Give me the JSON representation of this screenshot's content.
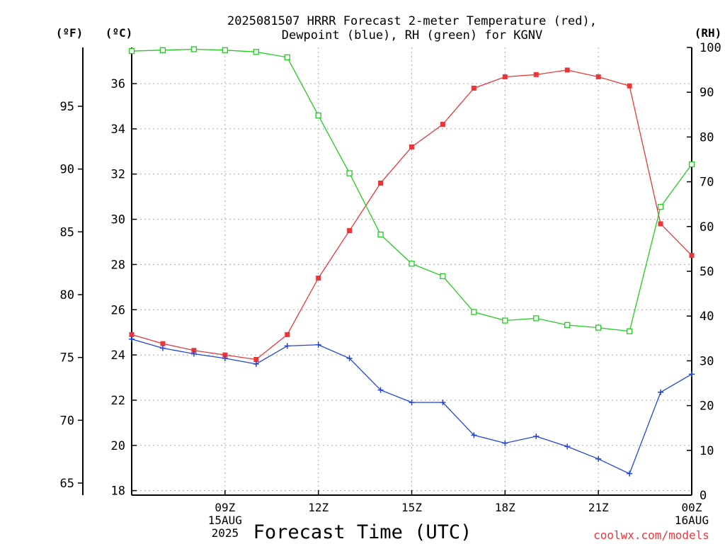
{
  "chart_data": {
    "type": "line",
    "title_line1": "2025081507 HRRR Forecast 2-meter Temperature (red),",
    "title_line2": "Dewpoint (blue), RH (green) for KGNV",
    "unit_f": "(ºF)",
    "unit_c": "(ºC)",
    "unit_rh": "(RH)",
    "xlabel": "Forecast Time (UTC)",
    "credit": "coolwx.com/models",
    "grid": true,
    "x_hours_from_06Z": [
      0,
      1,
      2,
      3,
      4,
      5,
      6,
      7,
      8,
      9,
      10,
      11,
      12,
      13,
      14,
      15,
      16,
      17,
      18
    ],
    "xlim": [
      0,
      18
    ],
    "x_ticks": [
      {
        "hour": 3,
        "lines": [
          "09Z",
          "15AUG",
          "2025"
        ]
      },
      {
        "hour": 6,
        "lines": [
          "12Z"
        ]
      },
      {
        "hour": 9,
        "lines": [
          "15Z"
        ]
      },
      {
        "hour": 12,
        "lines": [
          "18Z"
        ]
      },
      {
        "hour": 15,
        "lines": [
          "21Z"
        ]
      },
      {
        "hour": 18,
        "lines": [
          "00Z",
          "16AUG"
        ]
      }
    ],
    "celsius_axis": {
      "lim": [
        17.8,
        37.6
      ],
      "ticks": [
        "18",
        "20",
        "22",
        "24",
        "26",
        "28",
        "30",
        "32",
        "34",
        "36"
      ]
    },
    "fahrenheit_axis": {
      "lim": [
        64.04,
        99.68
      ],
      "ticks": [
        "65",
        "70",
        "75",
        "80",
        "85",
        "90",
        "95"
      ]
    },
    "rh_axis": {
      "lim": [
        0,
        100
      ],
      "ticks": [
        "0",
        "10",
        "20",
        "30",
        "40",
        "50",
        "60",
        "70",
        "80",
        "90",
        "100"
      ]
    },
    "series": [
      {
        "name": "Temperature",
        "axis": "celsius",
        "color": "#e8373b",
        "marker": "filled-square",
        "values": [
          24.9,
          24.5,
          24.2,
          24.0,
          23.8,
          24.9,
          27.4,
          29.5,
          31.6,
          33.2,
          34.2,
          35.8,
          36.3,
          36.4,
          36.6,
          36.3,
          35.9,
          29.8,
          28.4
        ]
      },
      {
        "name": "Dewpoint",
        "axis": "celsius",
        "color": "#2244dd",
        "marker": "plus",
        "values": [
          24.7,
          24.3,
          24.05,
          23.85,
          23.6,
          24.4,
          24.45,
          23.85,
          22.45,
          21.9,
          21.9,
          20.45,
          20.1,
          20.4,
          19.95,
          19.4,
          18.75,
          22.35,
          23.15
        ]
      },
      {
        "name": "RH",
        "axis": "rh",
        "color": "#22cc22",
        "marker": "open-square",
        "values": [
          99.2,
          99.4,
          99.6,
          99.4,
          99.0,
          97.8,
          84.8,
          71.9,
          58.2,
          51.7,
          48.9,
          40.9,
          39.0,
          39.5,
          38.0,
          37.4,
          36.6,
          64.4,
          73.9
        ]
      }
    ]
  }
}
